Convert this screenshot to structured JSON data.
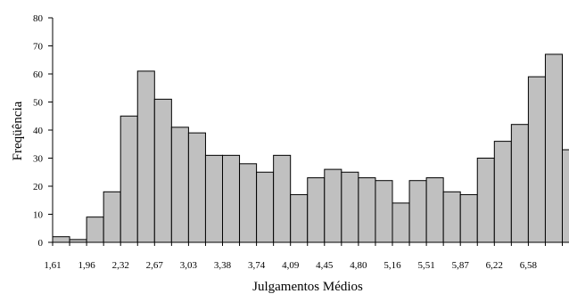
{
  "chart_data": {
    "type": "bar",
    "title": "",
    "xlabel": "Julgamentos Médios",
    "ylabel": "Freqüência",
    "ylim": [
      0,
      80
    ],
    "y_ticks": [
      "0",
      "10",
      "20",
      "30",
      "40",
      "50",
      "60",
      "70",
      "80"
    ],
    "x_tick_labels": [
      "1,61",
      "1,96",
      "2,32",
      "2,67",
      "3,03",
      "3,38",
      "3,74",
      "4,09",
      "4,45",
      "4,80",
      "5,16",
      "5,51",
      "5,87",
      "6,22",
      "6,58"
    ],
    "values": [
      2,
      1,
      9,
      18,
      45,
      61,
      51,
      41,
      39,
      31,
      31,
      28,
      25,
      31,
      17,
      23,
      26,
      25,
      23,
      22,
      14,
      22,
      23,
      18,
      17,
      30,
      36,
      42,
      59,
      67,
      33
    ],
    "grid": false,
    "legend": "none",
    "colors": {
      "bar_fill": "#c0c0c0",
      "bar_stroke": "#000000"
    }
  }
}
